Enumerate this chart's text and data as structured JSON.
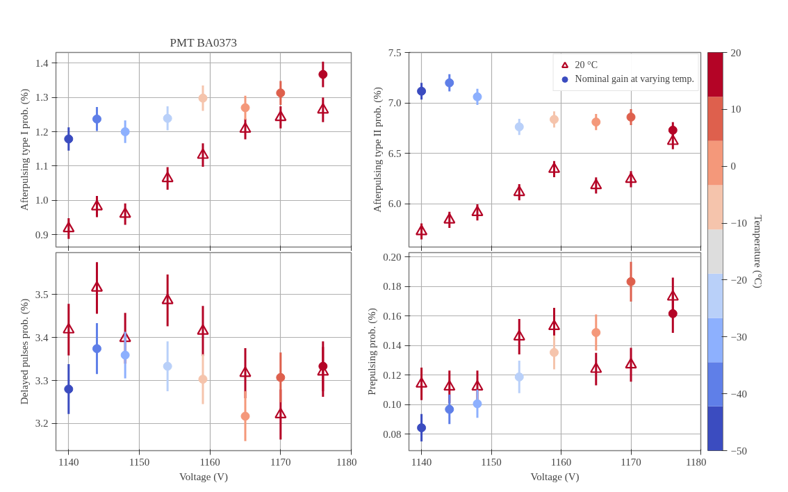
{
  "chart_data": [
    {
      "type": "scatter",
      "title": "PMT BA0373",
      "ylabel": "Afterpulsing type I prob. (%)",
      "x": [
        1140,
        1144,
        1148,
        1154,
        1159,
        1165,
        1170,
        1176
      ],
      "xlim": [
        1138.2,
        1180
      ],
      "xticks": [
        1140,
        1150,
        1160,
        1170,
        1180
      ],
      "ylim": [
        0.864,
        1.431
      ],
      "yticks": [
        0.9,
        {
          "value": 1.0,
          "label": "1.0"
        },
        1.1,
        1.2,
        1.3,
        1.4
      ],
      "grid": true,
      "tick_labels": "y",
      "series": [
        {
          "marker": "triangle",
          "color": "#b40426",
          "values": [
            0.918,
            0.982,
            0.96,
            1.064,
            1.132,
            1.208,
            1.242,
            1.264
          ],
          "errors": [
            0.03,
            0.031,
            0.031,
            0.033,
            0.034,
            0.03,
            0.032,
            0.036
          ]
        },
        {
          "marker": "circle",
          "colors": [
            "#3b4cc0",
            "#5f7fe8",
            "#8db0fe",
            "#b9d0f9",
            "#f5c4ac",
            "#f4987a",
            "#de604d",
            "#b40426"
          ],
          "values": [
            1.179,
            1.237,
            1.2,
            1.239,
            1.298,
            1.27,
            1.313,
            1.367
          ],
          "errors": [
            0.034,
            0.035,
            0.033,
            0.035,
            0.037,
            0.035,
            0.035,
            0.037
          ]
        }
      ]
    },
    {
      "type": "scatter",
      "ylabel": "Afterpulsing type II prob. (%)",
      "x": [
        1140,
        1144,
        1148,
        1154,
        1159,
        1165,
        1170,
        1176
      ],
      "xlim": [
        1138.2,
        1180
      ],
      "xticks": [
        1140,
        1150,
        1160,
        1170,
        1180
      ],
      "ylim": [
        5.57,
        7.5
      ],
      "yticks": [
        {
          "value": 6.0,
          "label": "6.0"
        },
        6.5,
        {
          "value": 7.0,
          "label": "7.0"
        },
        7.5
      ],
      "grid": true,
      "tick_labels": "y",
      "legend": "top right",
      "clabel": "Temperature (°C)",
      "clim": [
        -50,
        20
      ],
      "cticks": [
        {
          "value": -50,
          "label": "−50"
        },
        {
          "value": -40,
          "label": "−40"
        },
        {
          "value": -30,
          "label": "−30"
        },
        {
          "value": -20,
          "label": "−20"
        },
        {
          "value": -10,
          "label": "−10"
        },
        0,
        10,
        20
      ],
      "colors": [
        "#3b4cc0",
        "#5f7fe8",
        "#8db0fe",
        "#b9d0f9",
        "#dddddd",
        "#f5c4ac",
        "#f4987a",
        "#de604d",
        "#b40426"
      ],
      "series": [
        {
          "name": "20 °C",
          "marker": "triangle",
          "color": "#b40426",
          "values": [
            5.725,
            5.84,
            5.914,
            6.113,
            6.343,
            6.181,
            6.243,
            6.62
          ],
          "errors": [
            0.08,
            0.08,
            0.08,
            0.08,
            0.08,
            0.08,
            0.08,
            0.08
          ]
        },
        {
          "name": "Nominal gain at varying temp.",
          "marker": "circle",
          "colors": [
            "#3b4cc0",
            "#5f7fe8",
            "#8db0fe",
            "#b9d0f9",
            "#f5c4ac",
            "#f4987a",
            "#de604d",
            "#b40426"
          ],
          "values": [
            7.116,
            7.199,
            7.06,
            6.762,
            6.836,
            6.81,
            6.859,
            6.729
          ],
          "errors": [
            0.083,
            0.085,
            0.08,
            0.08,
            0.08,
            0.08,
            0.08,
            0.08
          ]
        }
      ]
    },
    {
      "type": "scatter",
      "ylabel": "Delayed pulses prob. (%)",
      "xlabel": "Voltage (V)",
      "x": [
        1140,
        1144,
        1148,
        1154,
        1159,
        1165,
        1170,
        1176
      ],
      "xlim": [
        1138.2,
        1180
      ],
      "xticks": [
        1140,
        1150,
        1160,
        1170,
        1180
      ],
      "ylim": [
        3.137,
        3.597
      ],
      "yticks": [
        3.2,
        3.3,
        3.4,
        3.5
      ],
      "grid": true,
      "series": [
        {
          "marker": "triangle",
          "color": "#b40426",
          "values": [
            3.418,
            3.515,
            3.398,
            3.486,
            3.415,
            3.317,
            3.221,
            3.32
          ],
          "errors": [
            0.06,
            0.06,
            0.059,
            0.06,
            0.058,
            0.058,
            0.058,
            0.058
          ]
        },
        {
          "marker": "circle",
          "colors": [
            "#3b4cc0",
            "#5f7fe8",
            "#8db0fe",
            "#b9d0f9",
            "#f5c4ac",
            "#f4987a",
            "#de604d",
            "#b40426"
          ],
          "values": [
            3.28,
            3.374,
            3.359,
            3.333,
            3.303,
            3.217,
            3.307,
            3.333
          ],
          "errors": [
            0.058,
            0.059,
            0.054,
            0.058,
            0.058,
            0.058,
            0.058,
            0.058
          ]
        }
      ]
    },
    {
      "type": "scatter",
      "ylabel": "Prepulsing prob. (%)",
      "xlabel": "Voltage (V)",
      "x": [
        1140,
        1144,
        1148,
        1154,
        1159,
        1165,
        1170,
        1176
      ],
      "xlim": [
        1138.2,
        1180
      ],
      "xticks": [
        1140,
        1150,
        1160,
        1170,
        1180
      ],
      "ylim": [
        0.0687,
        0.203
      ],
      "yticks": [
        0.08,
        {
          "value": 0.1,
          "label": "0.10"
        },
        0.12,
        0.14,
        0.16,
        0.18,
        {
          "value": 0.2,
          "label": "0.20"
        }
      ],
      "grid": true,
      "series": [
        {
          "marker": "triangle",
          "color": "#b40426",
          "values": [
            0.114,
            0.112,
            0.112,
            0.146,
            0.153,
            0.124,
            0.127,
            0.173
          ],
          "errors": [
            0.011,
            0.011,
            0.011,
            0.012,
            0.0125,
            0.011,
            0.0115,
            0.013
          ]
        },
        {
          "marker": "circle",
          "colors": [
            "#3b4cc0",
            "#5f7fe8",
            "#8db0fe",
            "#b9d0f9",
            "#f5c4ac",
            "#f4987a",
            "#de604d",
            "#b40426"
          ],
          "values": [
            0.0842,
            0.0967,
            0.1005,
            0.1187,
            0.1353,
            0.1488,
            0.1833,
            0.1616
          ],
          "errors": [
            0.0093,
            0.01,
            0.0095,
            0.011,
            0.0115,
            0.0123,
            0.0135,
            0.013
          ]
        }
      ]
    }
  ]
}
